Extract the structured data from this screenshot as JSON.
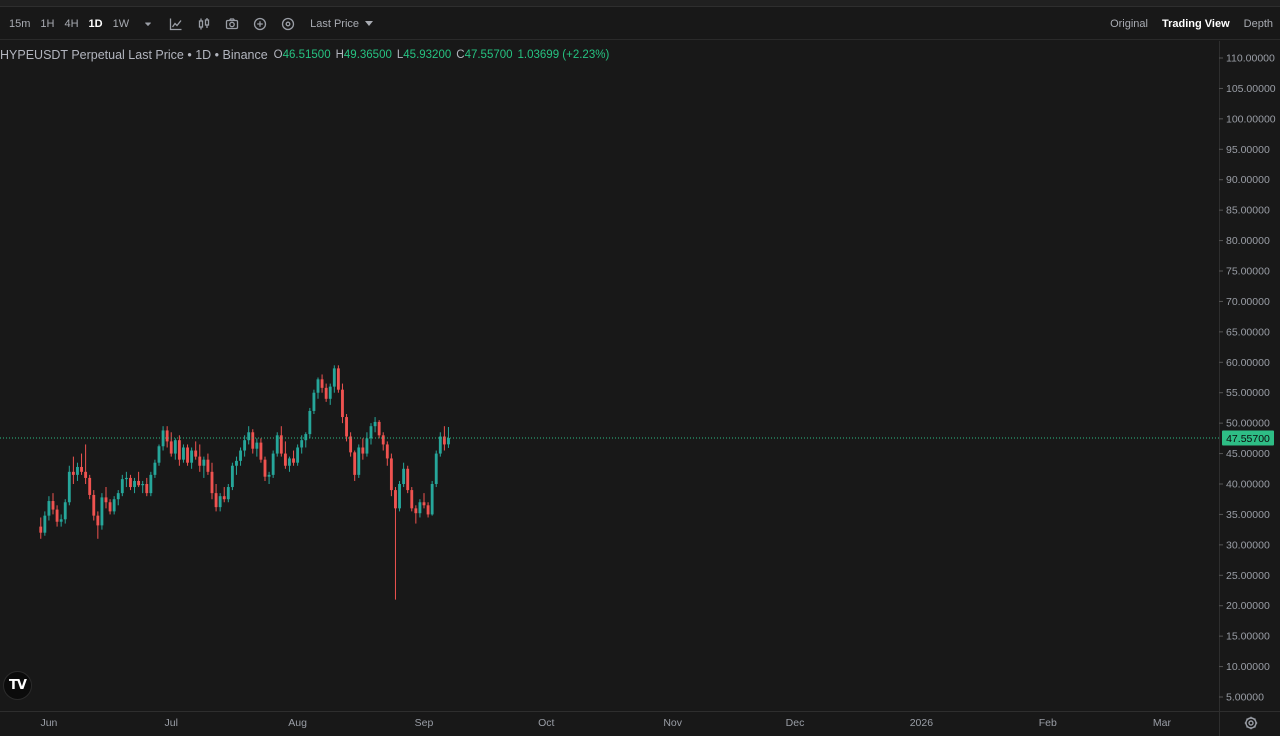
{
  "toolbar": {
    "timeframes": [
      "15m",
      "1H",
      "4H",
      "1D",
      "1W"
    ],
    "active_timeframe": "1D",
    "price_type": "Last Price",
    "icons": [
      "chevron-down-icon",
      "indicators-icon",
      "candle-settings-icon",
      "camera-icon",
      "add-icon",
      "target-icon"
    ]
  },
  "views": {
    "original": "Original",
    "trading_view": "Trading View",
    "depth": "Depth",
    "active": "Trading View"
  },
  "legend": {
    "symbol": "HYPEUSDT Perpetual Last Price • 1D • Binance",
    "o_label": "O",
    "o": "46.51500",
    "h_label": "H",
    "h": "49.36500",
    "l_label": "L",
    "l": "45.93200",
    "c_label": "C",
    "c": "47.55700",
    "change": "1.03699 (+2.23%)"
  },
  "logo_text": "TV",
  "colors": {
    "up": "#26a69a",
    "down": "#ef5350",
    "legend_value": "#26c281",
    "last_price": "#2ebd85",
    "background": "#181818"
  },
  "chart_data": {
    "type": "candlestick",
    "symbol": "HYPEUSDT",
    "interval": "1D",
    "last_price": 47.557,
    "last_price_label": "47.55700",
    "ylim": [
      2.5,
      113
    ],
    "y_ticks": [
      5,
      10,
      15,
      20,
      25,
      30,
      35,
      40,
      45,
      50,
      55,
      60,
      65,
      70,
      75,
      80,
      85,
      90,
      95,
      100,
      105,
      110
    ],
    "y_tick_labels": [
      "5.00000",
      "10.00000",
      "15.00000",
      "20.00000",
      "25.00000",
      "30.00000",
      "35.00000",
      "40.00000",
      "45.00000",
      "50.00000",
      "55.00000",
      "60.00000",
      "65.00000",
      "70.00000",
      "75.00000",
      "80.00000",
      "85.00000",
      "90.00000",
      "95.00000",
      "100.00000",
      "105.00000",
      "110.00000"
    ],
    "x_start": "2025-05-20",
    "x_end": "2026-03-15",
    "x_ticks": [
      {
        "date": "2025-06-01",
        "label": "Jun"
      },
      {
        "date": "2025-07-01",
        "label": "Jul"
      },
      {
        "date": "2025-08-01",
        "label": "Aug"
      },
      {
        "date": "2025-09-01",
        "label": "Sep"
      },
      {
        "date": "2025-10-01",
        "label": "Oct"
      },
      {
        "date": "2025-11-01",
        "label": "Nov"
      },
      {
        "date": "2025-12-01",
        "label": "Dec"
      },
      {
        "date": "2026-01-01",
        "label": "2026"
      },
      {
        "date": "2026-02-01",
        "label": "Feb"
      },
      {
        "date": "2026-03-01",
        "label": "Mar"
      }
    ],
    "first_date": "2025-05-30",
    "ohlc": [
      [
        33.0,
        34.5,
        31.0,
        32.0
      ],
      [
        32.0,
        35.5,
        31.5,
        34.8
      ],
      [
        34.8,
        38.0,
        34.0,
        37.2
      ],
      [
        37.2,
        38.5,
        35.0,
        35.8
      ],
      [
        35.8,
        36.5,
        33.0,
        33.8
      ],
      [
        33.8,
        35.0,
        33.0,
        34.2
      ],
      [
        34.2,
        37.5,
        33.5,
        37.0
      ],
      [
        37.0,
        43.0,
        36.5,
        42.0
      ],
      [
        42.0,
        44.5,
        40.0,
        41.5
      ],
      [
        41.5,
        43.5,
        40.5,
        42.8
      ],
      [
        42.8,
        45.0,
        41.5,
        42.0
      ],
      [
        42.0,
        46.5,
        40.0,
        41.0
      ],
      [
        41.0,
        41.5,
        37.5,
        38.2
      ],
      [
        38.2,
        39.0,
        34.0,
        34.8
      ],
      [
        34.8,
        35.5,
        31.0,
        33.2
      ],
      [
        33.2,
        38.5,
        32.5,
        37.8
      ],
      [
        37.8,
        39.5,
        36.0,
        37.0
      ],
      [
        37.0,
        37.5,
        35.0,
        35.5
      ],
      [
        35.5,
        38.0,
        35.0,
        37.5
      ],
      [
        37.5,
        39.0,
        36.5,
        38.5
      ],
      [
        38.5,
        41.5,
        38.0,
        40.8
      ],
      [
        40.8,
        42.0,
        39.5,
        41.0
      ],
      [
        41.0,
        41.5,
        39.0,
        39.5
      ],
      [
        39.5,
        41.0,
        38.5,
        40.5
      ],
      [
        40.5,
        42.0,
        39.5,
        39.8
      ],
      [
        39.8,
        40.5,
        38.5,
        40.0
      ],
      [
        40.0,
        41.0,
        38.0,
        38.5
      ],
      [
        38.5,
        42.0,
        38.0,
        41.5
      ],
      [
        41.5,
        44.0,
        41.0,
        43.5
      ],
      [
        43.5,
        46.5,
        43.0,
        46.2
      ],
      [
        46.2,
        49.5,
        45.5,
        48.8
      ],
      [
        48.8,
        49.5,
        46.0,
        47.0
      ],
      [
        47.0,
        48.5,
        44.5,
        45.0
      ],
      [
        45.0,
        47.5,
        44.0,
        47.2
      ],
      [
        47.2,
        48.0,
        43.0,
        44.0
      ],
      [
        44.0,
        46.5,
        43.5,
        46.0
      ],
      [
        46.0,
        46.5,
        43.0,
        43.5
      ],
      [
        43.5,
        46.0,
        42.5,
        45.5
      ],
      [
        45.5,
        47.0,
        44.0,
        44.5
      ],
      [
        44.5,
        46.5,
        42.0,
        43.0
      ],
      [
        43.0,
        44.5,
        41.0,
        44.0
      ],
      [
        44.0,
        45.0,
        41.5,
        42.0
      ],
      [
        42.0,
        43.5,
        37.5,
        38.5
      ],
      [
        38.5,
        40.0,
        35.5,
        36.2
      ],
      [
        36.2,
        38.5,
        35.5,
        38.0
      ],
      [
        38.0,
        39.5,
        37.0,
        37.5
      ],
      [
        37.5,
        40.0,
        37.0,
        39.5
      ],
      [
        39.5,
        43.5,
        39.0,
        43.0
      ],
      [
        43.0,
        44.5,
        41.5,
        43.8
      ],
      [
        43.8,
        46.0,
        43.0,
        45.5
      ],
      [
        45.5,
        48.0,
        44.5,
        47.2
      ],
      [
        47.2,
        49.5,
        46.5,
        48.5
      ],
      [
        48.5,
        49.0,
        45.0,
        45.8
      ],
      [
        45.8,
        47.5,
        44.5,
        46.8
      ],
      [
        46.8,
        47.5,
        43.5,
        44.0
      ],
      [
        44.0,
        44.5,
        40.5,
        41.2
      ],
      [
        41.2,
        42.0,
        40.0,
        41.5
      ],
      [
        41.5,
        45.5,
        41.0,
        45.0
      ],
      [
        45.0,
        48.5,
        44.5,
        48.0
      ],
      [
        48.0,
        49.5,
        44.5,
        45.0
      ],
      [
        45.0,
        47.0,
        42.5,
        43.0
      ],
      [
        43.0,
        44.5,
        42.0,
        44.2
      ],
      [
        44.2,
        45.5,
        43.0,
        43.5
      ],
      [
        43.5,
        46.5,
        43.0,
        46.0
      ],
      [
        46.0,
        48.0,
        45.0,
        47.2
      ],
      [
        47.2,
        48.5,
        46.0,
        48.2
      ],
      [
        48.2,
        52.5,
        47.5,
        52.0
      ],
      [
        52.0,
        55.5,
        51.5,
        55.0
      ],
      [
        55.0,
        57.5,
        54.0,
        57.2
      ],
      [
        57.2,
        58.0,
        55.0,
        55.8
      ],
      [
        55.8,
        56.5,
        53.5,
        54.0
      ],
      [
        54.0,
        56.5,
        53.0,
        56.0
      ],
      [
        56.0,
        59.5,
        55.0,
        59.0
      ],
      [
        59.0,
        59.5,
        55.0,
        55.5
      ],
      [
        55.5,
        56.5,
        50.0,
        51.0
      ],
      [
        51.0,
        51.5,
        47.0,
        47.8
      ],
      [
        47.8,
        48.5,
        44.5,
        45.2
      ],
      [
        45.2,
        45.5,
        40.5,
        41.5
      ],
      [
        41.5,
        46.5,
        41.0,
        46.0
      ],
      [
        46.0,
        47.5,
        44.0,
        45.0
      ],
      [
        45.0,
        48.5,
        44.5,
        47.5
      ],
      [
        47.5,
        50.0,
        46.5,
        49.5
      ],
      [
        49.5,
        51.0,
        48.5,
        50.2
      ],
      [
        50.2,
        50.5,
        47.5,
        48.0
      ],
      [
        48.0,
        48.5,
        45.5,
        46.5
      ],
      [
        46.5,
        47.0,
        43.0,
        44.2
      ],
      [
        44.2,
        45.0,
        38.0,
        39.0
      ],
      [
        39.0,
        39.5,
        21.0,
        36.0
      ],
      [
        36.0,
        40.5,
        35.5,
        40.0
      ],
      [
        40.0,
        43.5,
        39.5,
        42.5
      ],
      [
        42.5,
        43.0,
        38.5,
        39.0
      ],
      [
        39.0,
        39.5,
        35.5,
        36.0
      ],
      [
        36.0,
        36.5,
        33.5,
        35.2
      ],
      [
        35.2,
        37.5,
        34.5,
        37.0
      ],
      [
        37.0,
        38.5,
        36.0,
        36.5
      ],
      [
        36.5,
        37.0,
        34.5,
        35.0
      ],
      [
        35.0,
        40.5,
        34.8,
        40.0
      ],
      [
        40.0,
        45.5,
        39.5,
        45.0
      ],
      [
        45.0,
        48.5,
        44.5,
        47.8
      ],
      [
        47.8,
        49.5,
        45.5,
        46.5
      ],
      [
        46.515,
        49.365,
        45.932,
        47.557
      ]
    ]
  }
}
